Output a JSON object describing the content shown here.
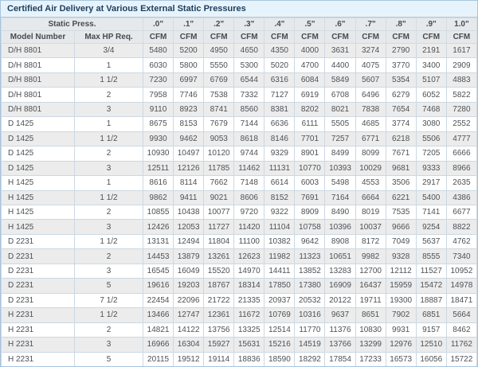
{
  "chart_data": {
    "type": "table",
    "title": "Certified Air Delivery at Various External Static Pressures",
    "header": {
      "static_press_label": "Static Press.",
      "model_label": "Model Number",
      "hp_label": "Max HP Req.",
      "pressure_labels": [
        ".0\"",
        ".1\"",
        ".2\"",
        ".3\"",
        ".4\"",
        ".5\"",
        ".6\"",
        ".7\"",
        ".8\"",
        ".9\"",
        "1.0\""
      ],
      "unit_label": "CFM"
    },
    "rows": [
      {
        "model": "D/H 8801",
        "hp": "3/4",
        "cfm": [
          5480,
          5200,
          4950,
          4650,
          4350,
          4000,
          3631,
          3274,
          2790,
          2191,
          1617
        ]
      },
      {
        "model": "D/H 8801",
        "hp": "1",
        "cfm": [
          6030,
          5800,
          5550,
          5300,
          5020,
          4700,
          4400,
          4075,
          3770,
          3400,
          2909
        ]
      },
      {
        "model": "D/H 8801",
        "hp": "1 1/2",
        "cfm": [
          7230,
          6997,
          6769,
          6544,
          6316,
          6084,
          5849,
          5607,
          5354,
          5107,
          4883
        ]
      },
      {
        "model": "D/H 8801",
        "hp": "2",
        "cfm": [
          7958,
          7746,
          7538,
          7332,
          7127,
          6919,
          6708,
          6496,
          6279,
          6052,
          5822
        ]
      },
      {
        "model": "D/H 8801",
        "hp": "3",
        "cfm": [
          9110,
          8923,
          8741,
          8560,
          8381,
          8202,
          8021,
          7838,
          7654,
          7468,
          7280
        ]
      },
      {
        "model": "D 1425",
        "hp": "1",
        "cfm": [
          8675,
          8153,
          7679,
          7144,
          6636,
          6111,
          5505,
          4685,
          3774,
          3080,
          2552
        ]
      },
      {
        "model": "D 1425",
        "hp": "1 1/2",
        "cfm": [
          9930,
          9462,
          9053,
          8618,
          8146,
          7701,
          7257,
          6771,
          6218,
          5506,
          4777
        ]
      },
      {
        "model": "D 1425",
        "hp": "2",
        "cfm": [
          10930,
          10497,
          10120,
          9744,
          9329,
          8901,
          8499,
          8099,
          7671,
          7205,
          6666
        ]
      },
      {
        "model": "D 1425",
        "hp": "3",
        "cfm": [
          12511,
          12126,
          11785,
          11462,
          11131,
          10770,
          10393,
          10029,
          9681,
          9333,
          8966
        ]
      },
      {
        "model": "H 1425",
        "hp": "1",
        "cfm": [
          8616,
          8114,
          7662,
          7148,
          6614,
          6003,
          5498,
          4553,
          3506,
          2917,
          2635
        ]
      },
      {
        "model": "H 1425",
        "hp": "1 1/2",
        "cfm": [
          9862,
          9411,
          9021,
          8606,
          8152,
          7691,
          7164,
          6664,
          6221,
          5400,
          4386
        ]
      },
      {
        "model": "H 1425",
        "hp": "2",
        "cfm": [
          10855,
          10438,
          10077,
          9720,
          9322,
          8909,
          8490,
          8019,
          7535,
          7141,
          6677
        ]
      },
      {
        "model": "H 1425",
        "hp": "3",
        "cfm": [
          12426,
          12053,
          11727,
          11420,
          11104,
          10758,
          10396,
          10037,
          9666,
          9254,
          8822
        ]
      },
      {
        "model": "D 2231",
        "hp": "1 1/2",
        "cfm": [
          13131,
          12494,
          11804,
          11100,
          10382,
          9642,
          8908,
          8172,
          7049,
          5637,
          4762
        ]
      },
      {
        "model": "D 2231",
        "hp": "2",
        "cfm": [
          14453,
          13879,
          13261,
          12623,
          11982,
          11323,
          10651,
          9982,
          9328,
          8555,
          7340
        ]
      },
      {
        "model": "D 2231",
        "hp": "3",
        "cfm": [
          16545,
          16049,
          15520,
          14970,
          14411,
          13852,
          13283,
          12700,
          12112,
          11527,
          10952
        ]
      },
      {
        "model": "D 2231",
        "hp": "5",
        "cfm": [
          19616,
          19203,
          18767,
          18314,
          17850,
          17380,
          16909,
          16437,
          15959,
          15472,
          14978
        ]
      },
      {
        "model": "D 2231",
        "hp": "7 1/2",
        "cfm": [
          22454,
          22096,
          21722,
          21335,
          20937,
          20532,
          20122,
          19711,
          19300,
          18887,
          18471
        ]
      },
      {
        "model": "H 2231",
        "hp": "1 1/2",
        "cfm": [
          13466,
          12747,
          12361,
          11672,
          10769,
          10316,
          9637,
          8651,
          7902,
          6851,
          5664
        ]
      },
      {
        "model": "H 2231",
        "hp": "2",
        "cfm": [
          14821,
          14122,
          13756,
          13325,
          12514,
          11770,
          11376,
          10830,
          9931,
          9157,
          8462
        ]
      },
      {
        "model": "H 2231",
        "hp": "3",
        "cfm": [
          16966,
          16304,
          15927,
          15631,
          15216,
          14519,
          13766,
          13299,
          12976,
          12510,
          11762
        ]
      },
      {
        "model": "H 2231",
        "hp": "5",
        "cfm": [
          20115,
          19512,
          19114,
          18836,
          18590,
          18292,
          17854,
          17233,
          16573,
          16056,
          15722
        ]
      }
    ]
  },
  "colors": {
    "title_bg": "#e7f3fb",
    "title_text": "#1c3e5e",
    "header_bg": "#e6e9eb",
    "stripe_row_bg": "#ececec",
    "cell_border": "#ccd8e2",
    "outer_border": "#a7c4dd"
  }
}
